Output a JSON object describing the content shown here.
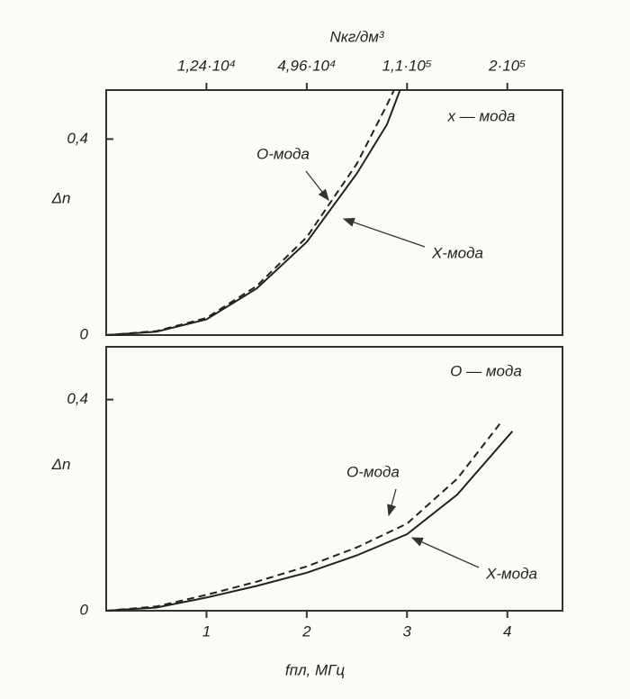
{
  "chart_data": [
    {
      "type": "line",
      "label": "x — мода",
      "x2label": "Nкг/дм³",
      "ylabel": "Δn",
      "xlim": [
        0,
        4.55
      ],
      "ylim": [
        0,
        0.5
      ],
      "x2ticks": [
        {
          "value": 1,
          "label": "1,24·10⁴"
        },
        {
          "value": 2,
          "label": "4,96·10⁴"
        },
        {
          "value": 3,
          "label": "1,1·10⁵"
        },
        {
          "value": 4,
          "label": "2·10⁵"
        }
      ],
      "yticks": [
        0,
        {
          "value": 0.4,
          "label": "0,4"
        }
      ],
      "series": [
        {
          "name": "О-мода",
          "style": "dashed",
          "color": "#222222",
          "x": [
            0,
            0.5,
            1,
            1.5,
            2,
            2.5,
            2.8,
            2.87
          ],
          "values": [
            0,
            0.008,
            0.035,
            0.1,
            0.2,
            0.35,
            0.47,
            0.5
          ]
        },
        {
          "name": "Х-мода",
          "style": "solid",
          "color": "#222222",
          "x": [
            0,
            0.5,
            1,
            1.5,
            2,
            2.5,
            2.8,
            2.93
          ],
          "values": [
            0,
            0.007,
            0.032,
            0.095,
            0.19,
            0.33,
            0.43,
            0.5
          ]
        }
      ]
    },
    {
      "type": "line",
      "label": "О — мода",
      "xlabel": "fпл, МГц",
      "ylabel": "Δn",
      "xlim": [
        0,
        4.55
      ],
      "ylim": [
        0,
        0.5
      ],
      "xticks": [
        1,
        2,
        3,
        4
      ],
      "yticks": [
        0,
        {
          "value": 0.4,
          "label": "0,4"
        }
      ],
      "series": [
        {
          "name": "О-мода",
          "style": "dashed",
          "color": "#222222",
          "x": [
            0,
            0.5,
            1,
            1.5,
            2,
            2.5,
            3,
            3.5,
            3.95
          ],
          "values": [
            0,
            0.008,
            0.03,
            0.055,
            0.084,
            0.12,
            0.165,
            0.25,
            0.36
          ]
        },
        {
          "name": "Х-мода",
          "style": "solid",
          "color": "#222222",
          "x": [
            0,
            0.5,
            1,
            1.5,
            2,
            2.5,
            3,
            3.5,
            4.05
          ],
          "values": [
            0,
            0.006,
            0.025,
            0.047,
            0.072,
            0.105,
            0.145,
            0.22,
            0.34
          ]
        }
      ]
    }
  ]
}
